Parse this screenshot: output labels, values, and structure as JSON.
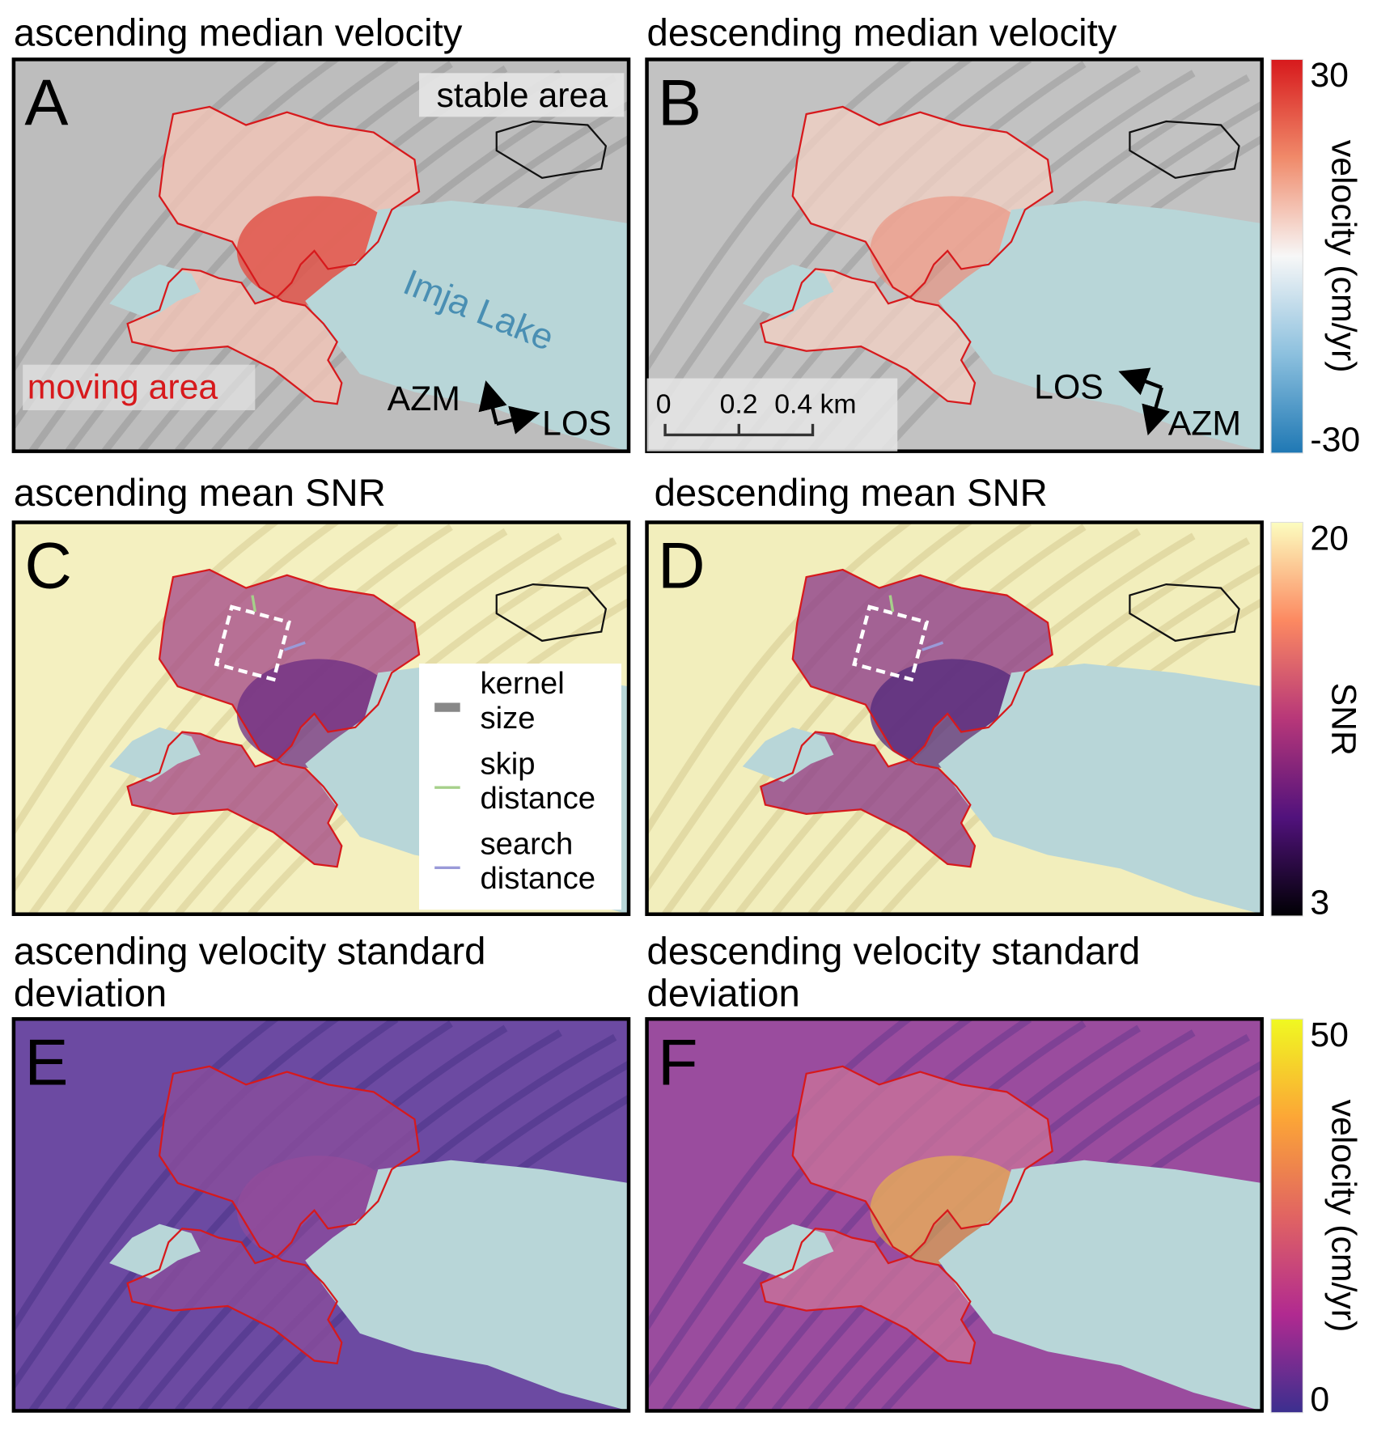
{
  "panels": [
    {
      "letter": "A",
      "title": [
        "ascending median velocity"
      ],
      "stable_label": "stable area",
      "moving_label": "moving area",
      "lake_label": "Imja Lake",
      "azm": "AZM",
      "los": "LOS"
    },
    {
      "letter": "B",
      "title": [
        "descending median velocity"
      ],
      "azm": "AZM",
      "los": "LOS",
      "scale_labels": [
        "0",
        "0.2",
        "0.4 km"
      ]
    },
    {
      "letter": "C",
      "title": [
        "ascending mean SNR"
      ],
      "legend": [
        [
          "kernel",
          "size"
        ],
        [
          "skip",
          "distance"
        ],
        [
          "search",
          "distance"
        ]
      ]
    },
    {
      "letter": "D",
      "title": [
        "descending mean SNR"
      ]
    },
    {
      "letter": "E",
      "title": [
        "ascending velocity standard",
        "deviation"
      ]
    },
    {
      "letter": "F",
      "title": [
        "descending velocity standard",
        "deviation"
      ]
    }
  ],
  "colorbars": [
    {
      "label": "velocity (cm/yr)",
      "ticks": [
        30,
        -30
      ]
    },
    {
      "label": "SNR",
      "ticks": [
        20,
        3
      ]
    },
    {
      "label": "velocity (cm/yr)",
      "ticks": [
        50,
        0
      ]
    }
  ]
}
